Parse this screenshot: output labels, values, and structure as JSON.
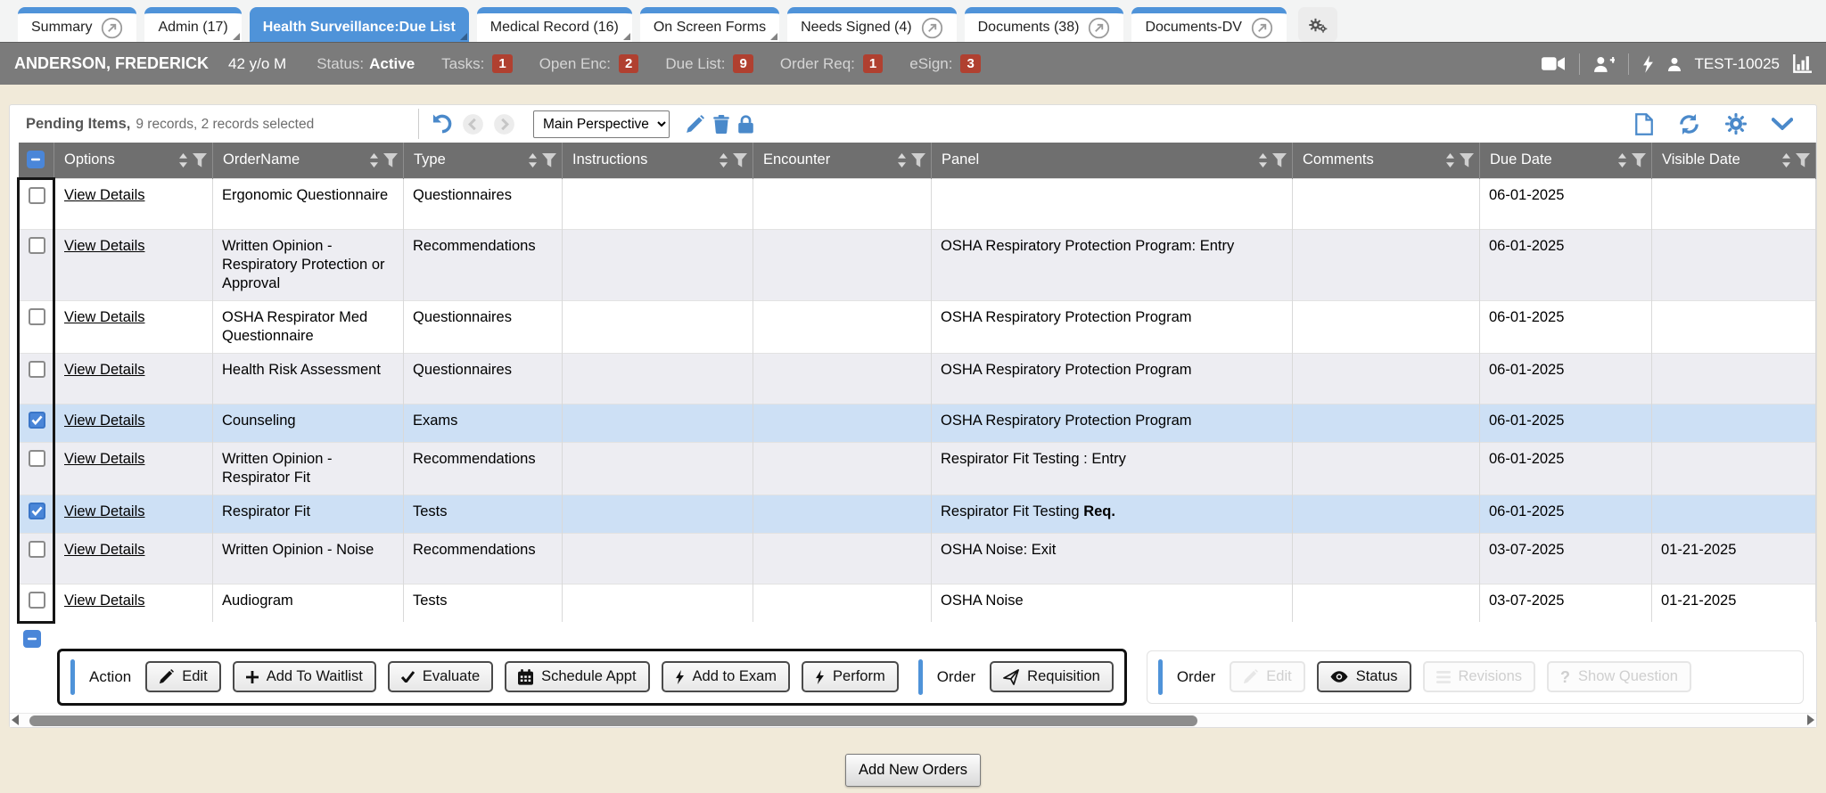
{
  "tab_bar": {
    "tabs": [
      {
        "label": "Summary",
        "active": false,
        "fold": false,
        "external": true
      },
      {
        "label": "Admin (17)",
        "active": false,
        "fold": true,
        "external": false
      },
      {
        "label": "Health Surveillance:Due List",
        "active": true,
        "fold": true,
        "external": false
      },
      {
        "label": "Medical Record (16)",
        "active": false,
        "fold": true,
        "external": false
      },
      {
        "label": "On Screen Forms",
        "active": false,
        "fold": true,
        "external": false
      },
      {
        "label": "Needs Signed (4)",
        "active": false,
        "fold": false,
        "external": true
      },
      {
        "label": "Documents (38)",
        "active": false,
        "fold": false,
        "external": true
      },
      {
        "label": "Documents-DV",
        "active": false,
        "fold": false,
        "external": true
      }
    ]
  },
  "patient_bar": {
    "name": "ANDERSON, FREDERICK",
    "age_sex": "42 y/o M",
    "status_label": "Status:",
    "status_value": "Active",
    "counters": [
      {
        "label": "Tasks:",
        "value": "1"
      },
      {
        "label": "Open Enc:",
        "value": "2"
      },
      {
        "label": "Due List:",
        "value": "9"
      },
      {
        "label": "Order Req:",
        "value": "1"
      },
      {
        "label": "eSign:",
        "value": "3"
      }
    ],
    "user_id": "TEST-10025"
  },
  "grid_toolbar": {
    "title": "Pending Items,",
    "records_summary": "9 records, 2 records selected",
    "perspective_value": "Main Perspective"
  },
  "table": {
    "link_label": "View Details",
    "columns": [
      "Options",
      "OrderName",
      "Type",
      "Instructions",
      "Encounter",
      "Panel",
      "Comments",
      "Due Date",
      "Visible Date"
    ],
    "rows": [
      {
        "checked": false,
        "selected": false,
        "order_name": "Ergonomic Questionnaire",
        "type": "Questionnaires",
        "instructions": "",
        "encounter": "",
        "panel": "",
        "panel_bold": "",
        "comments": "",
        "due_date": "06-01-2025",
        "visible_date": ""
      },
      {
        "checked": false,
        "selected": false,
        "order_name": "Written Opinion - Respiratory Protection or Approval",
        "type": "Recommendations",
        "instructions": "",
        "encounter": "",
        "panel": "OSHA Respiratory Protection Program: Entry",
        "panel_bold": "",
        "comments": "",
        "due_date": "06-01-2025",
        "visible_date": ""
      },
      {
        "checked": false,
        "selected": false,
        "order_name": "OSHA Respirator Med Questionnaire",
        "type": "Questionnaires",
        "instructions": "",
        "encounter": "",
        "panel": "OSHA Respiratory Protection Program",
        "panel_bold": "",
        "comments": "",
        "due_date": "06-01-2025",
        "visible_date": ""
      },
      {
        "checked": false,
        "selected": false,
        "order_name": "Health Risk Assessment",
        "type": "Questionnaires",
        "instructions": "",
        "encounter": "",
        "panel": "OSHA Respiratory Protection Program",
        "panel_bold": "",
        "comments": "",
        "due_date": "06-01-2025",
        "visible_date": ""
      },
      {
        "checked": true,
        "selected": true,
        "order_name": "Counseling",
        "type": "Exams",
        "instructions": "",
        "encounter": "",
        "panel": "OSHA Respiratory Protection Program",
        "panel_bold": "",
        "comments": "",
        "due_date": "06-01-2025",
        "visible_date": ""
      },
      {
        "checked": false,
        "selected": false,
        "order_name": "Written Opinion - Respirator Fit",
        "type": "Recommendations",
        "instructions": "",
        "encounter": "",
        "panel": "Respirator Fit Testing : Entry",
        "panel_bold": "",
        "comments": "",
        "due_date": "06-01-2025",
        "visible_date": ""
      },
      {
        "checked": true,
        "selected": true,
        "order_name": "Respirator Fit",
        "type": "Tests",
        "instructions": "",
        "encounter": "",
        "panel": "Respirator Fit Testing ",
        "panel_bold": "Req.",
        "comments": "",
        "due_date": "06-01-2025",
        "visible_date": ""
      },
      {
        "checked": false,
        "selected": false,
        "order_name": "Written Opinion - Noise",
        "type": "Recommendations",
        "instructions": "",
        "encounter": "",
        "panel": "OSHA Noise: Exit",
        "panel_bold": "",
        "comments": "",
        "due_date": "03-07-2025",
        "visible_date": "01-21-2025"
      },
      {
        "checked": false,
        "selected": false,
        "order_name": "Audiogram",
        "type": "Tests",
        "instructions": "",
        "encounter": "",
        "panel": "OSHA Noise",
        "panel_bold": "",
        "comments": "",
        "due_date": "03-07-2025",
        "visible_date": "01-21-2025"
      }
    ]
  },
  "action_bar": {
    "action_label": "Action",
    "action_buttons": [
      {
        "label": "Edit",
        "icon": "pencil",
        "disabled": false
      },
      {
        "label": "Add To Waitlist",
        "icon": "plus",
        "disabled": false
      },
      {
        "label": "Evaluate",
        "icon": "check",
        "disabled": false
      },
      {
        "label": "Schedule Appt",
        "icon": "calendar",
        "disabled": false
      },
      {
        "label": "Add to Exam",
        "icon": "bolt",
        "disabled": false
      },
      {
        "label": "Perform",
        "icon": "bolt",
        "disabled": false
      }
    ],
    "order_label": "Order",
    "order_buttons": [
      {
        "label": "Requisition",
        "icon": "send",
        "disabled": false
      }
    ],
    "order2_label": "Order",
    "order2_buttons": [
      {
        "label": "Edit",
        "icon": "pencil",
        "disabled": true
      },
      {
        "label": "Status",
        "icon": "eye",
        "disabled": false
      },
      {
        "label": "Revisions",
        "icon": "menu",
        "disabled": true
      },
      {
        "label": "Show Question",
        "icon": "question",
        "disabled": true
      }
    ]
  },
  "footer": {
    "add_new_orders_label": "Add New Orders"
  }
}
